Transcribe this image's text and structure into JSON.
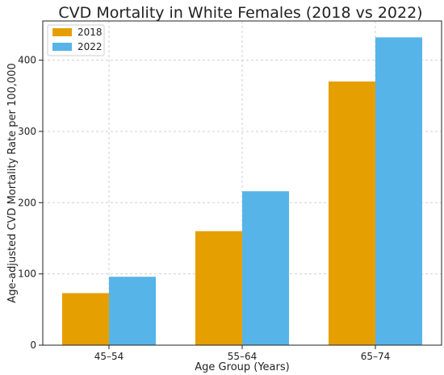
{
  "chart_data": {
    "type": "bar",
    "title": "CVD Mortality in White Females (2018 vs 2022)",
    "xlabel": "Age Group (Years)",
    "ylabel": "Age-adjusted CVD Mortality Rate per 100,000",
    "categories": [
      "45–54",
      "55–64",
      "65–74"
    ],
    "series": [
      {
        "name": "2018",
        "values": [
          73,
          160,
          370
        ],
        "color": "#E69F00"
      },
      {
        "name": "2022",
        "values": [
          96,
          216,
          432
        ],
        "color": "#56B4E9"
      }
    ],
    "ylim": [
      0,
      455
    ],
    "yticks": [
      0,
      100,
      200,
      300,
      400
    ],
    "grid": true,
    "legend_position": "top-left"
  }
}
